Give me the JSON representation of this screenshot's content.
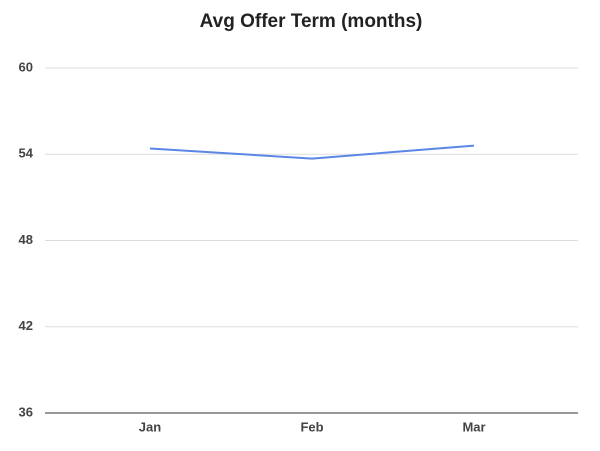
{
  "chart_data": {
    "type": "line",
    "title": "Avg Offer Term (months)",
    "categories": [
      "Jan",
      "Feb",
      "Mar"
    ],
    "series": [
      {
        "name": "Avg Offer Term (months)",
        "color": "#5b86e5",
        "values": [
          54.4,
          53.7,
          54.6
        ]
      }
    ],
    "ylim": [
      36,
      60
    ],
    "yticks": [
      36,
      42,
      48,
      54,
      60
    ],
    "grid": true
  }
}
